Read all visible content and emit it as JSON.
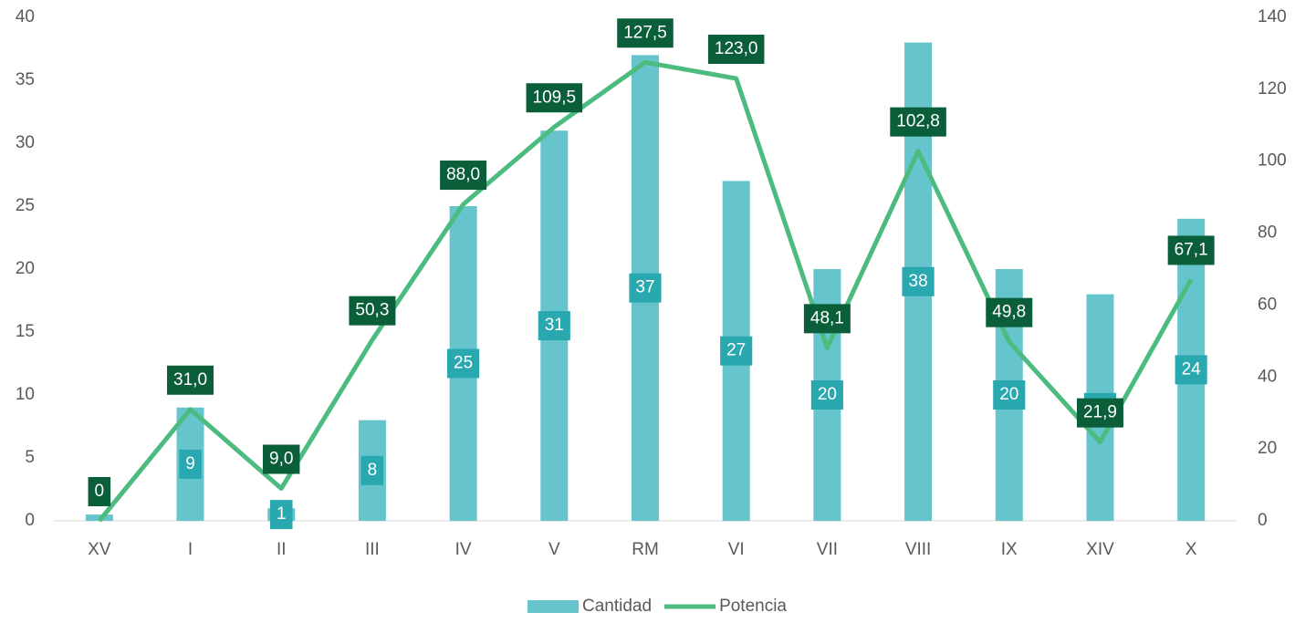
{
  "chart_data": {
    "type": "combo",
    "categories": [
      "XV",
      "I",
      "II",
      "III",
      "IV",
      "V",
      "RM",
      "VI",
      "VII",
      "VIII",
      "IX",
      "XIV",
      "X"
    ],
    "series": [
      {
        "name": "Cantidad",
        "type": "bar",
        "color": "#66c4cc",
        "label_color": "#2aa8b0",
        "values": [
          0.5,
          9,
          1,
          8,
          25,
          31,
          37,
          27,
          20,
          38,
          20,
          18,
          24
        ],
        "value_labels": [
          null,
          "9",
          "1",
          "8",
          "25",
          "31",
          "37",
          "27",
          "20",
          "38",
          "20",
          "18",
          "24"
        ]
      },
      {
        "name": "Potencia",
        "type": "line",
        "axis": "y2",
        "color": "#4cbb7f",
        "label_color": "#0b5e3a",
        "values": [
          0,
          31.0,
          9.0,
          50.3,
          88.0,
          109.5,
          127.5,
          123.0,
          48.1,
          102.8,
          49.8,
          21.9,
          67.1
        ],
        "value_labels": [
          "0",
          "31,0",
          "9,0",
          "50,3",
          "88,0",
          "109,5",
          "127,5",
          "123,0",
          "48,1",
          "102,8",
          "49,8",
          "21,9",
          "67,1"
        ]
      }
    ],
    "ylim": [
      0,
      40
    ],
    "yticks": [
      0,
      5,
      10,
      15,
      20,
      25,
      30,
      35,
      40
    ],
    "y2lim": [
      0,
      140
    ],
    "y2ticks": [
      0,
      20,
      40,
      60,
      80,
      100,
      120,
      140
    ],
    "legend": "bottom"
  }
}
